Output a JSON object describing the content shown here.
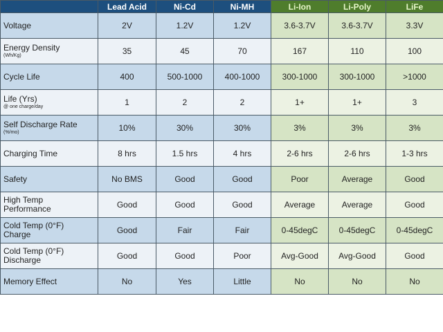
{
  "table": {
    "header": [
      "Lead Acid",
      "Ni-Cd",
      "Ni-MH",
      "Li-Ion",
      "Li-Poly",
      "LiFe"
    ],
    "rows": [
      {
        "label": [
          "Voltage"
        ],
        "cells": [
          "2V",
          "1.2V",
          "1.2V",
          "3.6-3.7V",
          "3.6-3.7V",
          "3.3V"
        ]
      },
      {
        "label": [
          "Energy Density"
        ],
        "note": "(Wh/Kg)",
        "cells": [
          "35",
          "45",
          "70",
          "167",
          "110",
          "100"
        ]
      },
      {
        "label": [
          "Cycle Life"
        ],
        "cells": [
          "400",
          "500-1000",
          "400-1000",
          "300-1000",
          "300-1000",
          ">1000"
        ]
      },
      {
        "label": [
          "Life (Yrs)"
        ],
        "note": "@ one charge/day",
        "cells": [
          "1",
          "2",
          "2",
          "1+",
          "1+",
          "3"
        ]
      },
      {
        "label": [
          "Self Discharge Rate"
        ],
        "note": "(%/mo)",
        "cells": [
          "10%",
          "30%",
          "30%",
          "3%",
          "3%",
          "3%"
        ]
      },
      {
        "label": [
          "Charging Time"
        ],
        "cells": [
          "8 hrs",
          "1.5 hrs",
          "4 hrs",
          "2-6 hrs",
          "2-6 hrs",
          "1-3 hrs"
        ]
      },
      {
        "label": [
          "Safety"
        ],
        "cells": [
          "No BMS",
          "Good",
          "Good",
          "Poor",
          "Average",
          "Good"
        ]
      },
      {
        "label": [
          "High Temp",
          "Performance"
        ],
        "cells": [
          "Good",
          "Good",
          "Good",
          "Average",
          "Average",
          "Good"
        ]
      },
      {
        "label": [
          "Cold Temp (0°F)",
          "Charge"
        ],
        "cells": [
          "Good",
          "Fair",
          "Fair",
          "0-45degC",
          "0-45degC",
          "0-45degC"
        ]
      },
      {
        "label": [
          "Cold Temp (0°F)",
          "Discharge"
        ],
        "cells": [
          "Good",
          "Good",
          "Poor",
          "Avg-Good",
          "Avg-Good",
          "Good"
        ]
      },
      {
        "label": [
          "Memory Effect"
        ],
        "cells": [
          "No",
          "Yes",
          "Little",
          "No",
          "No",
          "No"
        ]
      }
    ]
  }
}
